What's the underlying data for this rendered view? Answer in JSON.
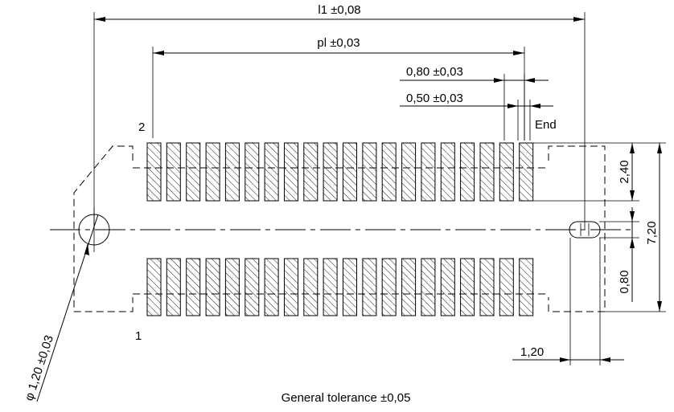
{
  "dimensions": {
    "l1": "l1 ±0,08",
    "pl": "pl ±0,03",
    "pitch_080": "0,80  ±0,03",
    "width_050": "0,50  ±0,03",
    "end_label": "End",
    "height_240": "2,40",
    "height_720": "7,20",
    "gap_080": "0,80",
    "slot_120": "1,20",
    "hole_dia": "φ 1,20 ±0,03"
  },
  "pins": {
    "pin_2": "2",
    "pin_1": "1",
    "pads_per_row": 20
  },
  "footer": {
    "tolerance": "General tolerance ±0,05"
  }
}
